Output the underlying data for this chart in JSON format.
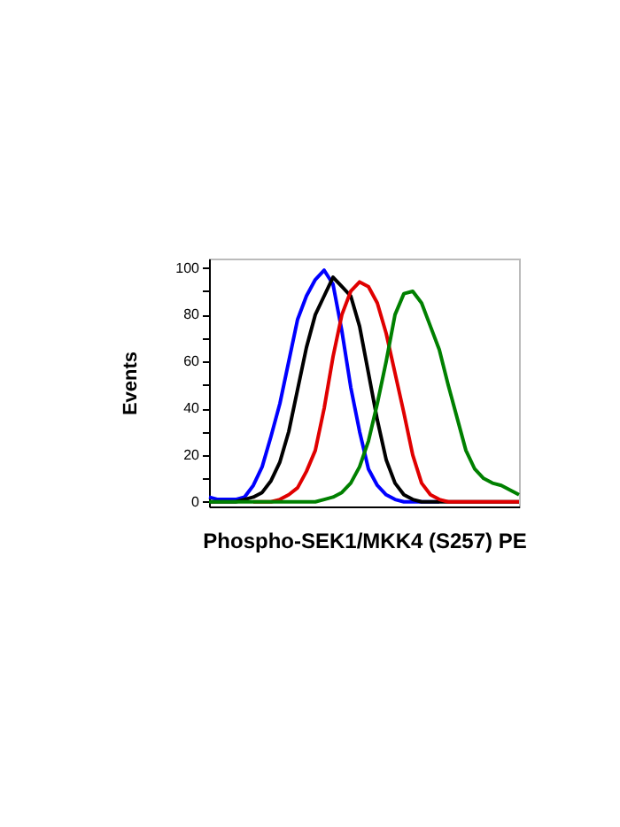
{
  "chart_data": {
    "type": "line",
    "xlabel": "Phospho-SEK1/MKK4 (S257) PE",
    "ylabel": "Events",
    "categories": [
      null,
      null,
      null,
      null,
      null,
      null,
      null,
      null,
      null,
      null,
      null,
      null,
      null,
      null,
      null,
      null,
      null,
      null,
      null,
      null,
      null,
      null,
      null,
      null,
      null,
      null,
      null,
      null,
      null,
      null,
      null,
      null,
      null,
      null,
      null,
      null
    ],
    "series": [
      {
        "color": "#0000ff",
        "values": [
          2,
          1,
          1,
          1,
          2,
          7,
          15,
          28,
          42,
          60,
          78,
          88,
          95,
          99,
          93,
          73,
          49,
          30,
          14,
          7,
          3,
          1,
          0,
          0,
          0,
          0,
          0,
          null,
          null,
          null,
          null,
          null,
          null,
          null,
          null,
          null
        ]
      },
      {
        "color": "#000000",
        "values": [
          0,
          0,
          0,
          0,
          1,
          2,
          4,
          9,
          17,
          30,
          48,
          66,
          80,
          88,
          96,
          92,
          88,
          75,
          55,
          35,
          18,
          8,
          3,
          1,
          0,
          0,
          0,
          0,
          0,
          0,
          0,
          0,
          0,
          0,
          0,
          0
        ]
      },
      {
        "color": "#e00000",
        "values": [
          null,
          null,
          null,
          null,
          null,
          0,
          0,
          0,
          1,
          3,
          6,
          13,
          22,
          40,
          62,
          80,
          90,
          94,
          92,
          85,
          72,
          55,
          38,
          20,
          8,
          3,
          1,
          0,
          0,
          0,
          0,
          0,
          0,
          0,
          0,
          0
        ]
      },
      {
        "color": "#008000",
        "values": [
          0,
          0,
          0,
          0,
          0,
          0,
          0,
          0,
          0,
          0,
          0,
          0,
          0,
          1,
          2,
          4,
          8,
          15,
          26,
          42,
          60,
          80,
          89,
          90,
          85,
          75,
          65,
          50,
          36,
          22,
          14,
          10,
          8,
          7,
          5,
          3
        ]
      }
    ],
    "ylim": [
      -2,
      104
    ],
    "yticks": [
      0,
      {
        "value": 10,
        "label": null
      },
      20,
      {
        "value": 30,
        "label": null
      },
      40,
      {
        "value": 50,
        "label": null
      },
      60,
      {
        "value": 70,
        "label": null
      },
      80,
      {
        "value": 90,
        "label": null
      },
      100
    ],
    "tick_labels": "y",
    "grid": false,
    "legend": false,
    "marker": "none",
    "line_style": "solid"
  }
}
